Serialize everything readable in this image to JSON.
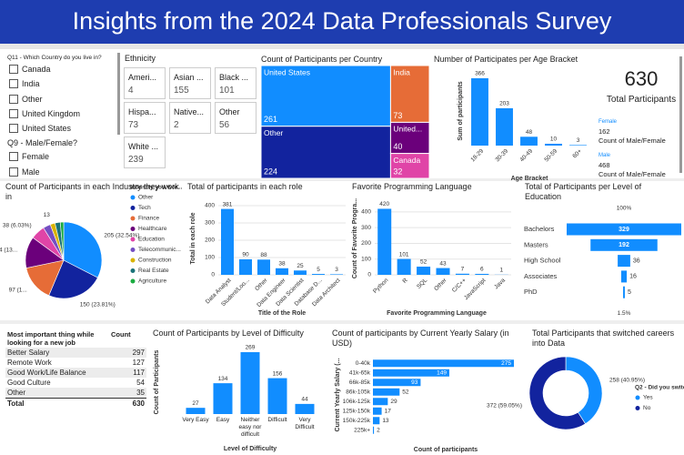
{
  "title": "Insights from the 2024 Data Professionals Survey",
  "slicers": [
    {
      "title": "Q11 - Which Country do you live in?",
      "items": [
        "Canada",
        "India",
        "Other",
        "United Kingdom",
        "United States"
      ]
    },
    {
      "title": "Q9 - Male/Female?",
      "items": [
        "Female",
        "Male"
      ]
    }
  ],
  "ethnicity": {
    "title": "Ethnicity",
    "cards": [
      {
        "label": "Ameri...",
        "value": 4
      },
      {
        "label": "Asian ...",
        "value": 155
      },
      {
        "label": "Black ...",
        "value": 101
      },
      {
        "label": "Hispa...",
        "value": 73
      },
      {
        "label": "Native...",
        "value": 2
      },
      {
        "label": "Other",
        "value": 56
      },
      {
        "label": "White ...",
        "value": 239
      }
    ]
  },
  "total_card": {
    "value": 630,
    "label": "Total Participants"
  },
  "gender_cards": [
    {
      "label": "Female",
      "value": 162,
      "caption": "Count of Male/Female"
    },
    {
      "label": "Male",
      "value": 468,
      "caption": "Count of Male/Female"
    }
  ],
  "job_table": {
    "headers": [
      "Most important thing while looking for a new job",
      "Count"
    ],
    "rows": [
      [
        "Better Salary",
        297
      ],
      [
        "Remote Work",
        127
      ],
      [
        "Good Work/Life Balance",
        117
      ],
      [
        "Good Culture",
        54
      ],
      [
        "Other",
        35
      ]
    ],
    "total": [
      "Total",
      630
    ]
  },
  "chart_data": [
    {
      "type": "treemap",
      "title": "Count of Participants per Country",
      "categories": [
        "United States",
        "Other",
        "India",
        "United...",
        "Canada"
      ],
      "values": [
        261,
        224,
        73,
        40,
        32
      ],
      "colors": [
        "#118dff",
        "#12239e",
        "#e66c37",
        "#6b007b",
        "#e044a7"
      ]
    },
    {
      "type": "bar",
      "title": "Number of Participates per Age Bracket",
      "x_label": "Age Bracket",
      "y_label": "Sum of participants",
      "categories": [
        "18-29",
        "30-39",
        "40-49",
        "50-59",
        "60+"
      ],
      "values": [
        366,
        203,
        48,
        10,
        3
      ],
      "color": "#118dff",
      "data_labels": true
    },
    {
      "type": "pie",
      "title": "Count of Participants in each Industry they work in",
      "legend_title": "Industry you wor...",
      "categories": [
        "Other",
        "Tech",
        "Finance",
        "Healthcare",
        "Education",
        "Telecommunic...",
        "Construction",
        "Real Estate",
        "Agriculture"
      ],
      "values": [
        205,
        150,
        97,
        84,
        38,
        20,
        13,
        14,
        9
      ],
      "value_labels": [
        "205 (32.54%)",
        "150 (23.81%)",
        "97 (1...",
        "84 (13...",
        "38 (6.03%)",
        null,
        "13",
        null,
        null
      ],
      "colors": [
        "#118dff",
        "#12239e",
        "#e66c37",
        "#6b007b",
        "#e044a7",
        "#744ec2",
        "#d9b300",
        "#197278",
        "#1aab40"
      ]
    },
    {
      "type": "bar",
      "title": "Total of participants in each role",
      "x_label": "Title of the Role",
      "y_label": "Total in each role",
      "categories": [
        "Data Analyst",
        "Student/Loo...",
        "Other",
        "Data Engineer",
        "Data Scientist",
        "Database D...",
        "Data Architect"
      ],
      "values": [
        381,
        90,
        88,
        38,
        25,
        5,
        3
      ],
      "color": "#118dff",
      "data_labels": true,
      "ylim": [
        0,
        400
      ],
      "yticks": [
        0,
        100,
        200,
        300,
        400
      ],
      "grid": true
    },
    {
      "type": "bar",
      "title": "Favorite Programming Language",
      "x_label": "Favorite Programming Language",
      "y_label": "Count of Favorite Progra...",
      "categories": [
        "Python",
        "R",
        "SQL",
        "Other",
        "C/C++",
        "JavaScript",
        "Java"
      ],
      "values": [
        420,
        101,
        52,
        43,
        7,
        6,
        1
      ],
      "color": "#118dff",
      "data_labels": true,
      "ylim": [
        0,
        440
      ],
      "yticks": [
        0,
        100,
        200,
        300,
        400
      ],
      "grid": true
    },
    {
      "type": "funnel",
      "title": "Total of Participants per Level of Education",
      "categories": [
        "Bachelors",
        "Masters",
        "High School",
        "Associates",
        "PhD"
      ],
      "values": [
        329,
        192,
        36,
        16,
        5
      ],
      "top_label": "100%",
      "bottom_label": "1.5%",
      "color": "#118dff"
    },
    {
      "type": "bar",
      "title": "Count of Participants by Level of Difficulty",
      "x_label": "Level of Difficulty",
      "y_label": "Count of Participants",
      "categories": [
        "Very Easy",
        "Easy",
        "Neither easy nor difficult",
        "Difficult",
        "Very Difficult"
      ],
      "values": [
        27,
        134,
        269,
        156,
        44
      ],
      "color": "#118dff",
      "data_labels": true
    },
    {
      "type": "hbar",
      "title": "Count of participants by Current Yearly Salary (in USD)",
      "x_label": "Count of participants",
      "y_label": "Current Yearly Salary (...",
      "categories": [
        "0-40k",
        "41k-65k",
        "66k-85k",
        "86k-105k",
        "106k-125k",
        "125k-150k",
        "150k-225k",
        "225k+"
      ],
      "values": [
        275,
        149,
        93,
        52,
        29,
        17,
        13,
        2
      ],
      "color": "#118dff",
      "data_labels": true
    },
    {
      "type": "donut",
      "title": "Total Participants that switched careers into Data",
      "legend_title": "Q2 - Did you switc...",
      "categories": [
        "Yes",
        "No"
      ],
      "values": [
        258,
        372
      ],
      "value_labels": [
        "258 (40.95%)",
        "372 (59.05%)"
      ],
      "colors": [
        "#118dff",
        "#12239e"
      ]
    }
  ]
}
